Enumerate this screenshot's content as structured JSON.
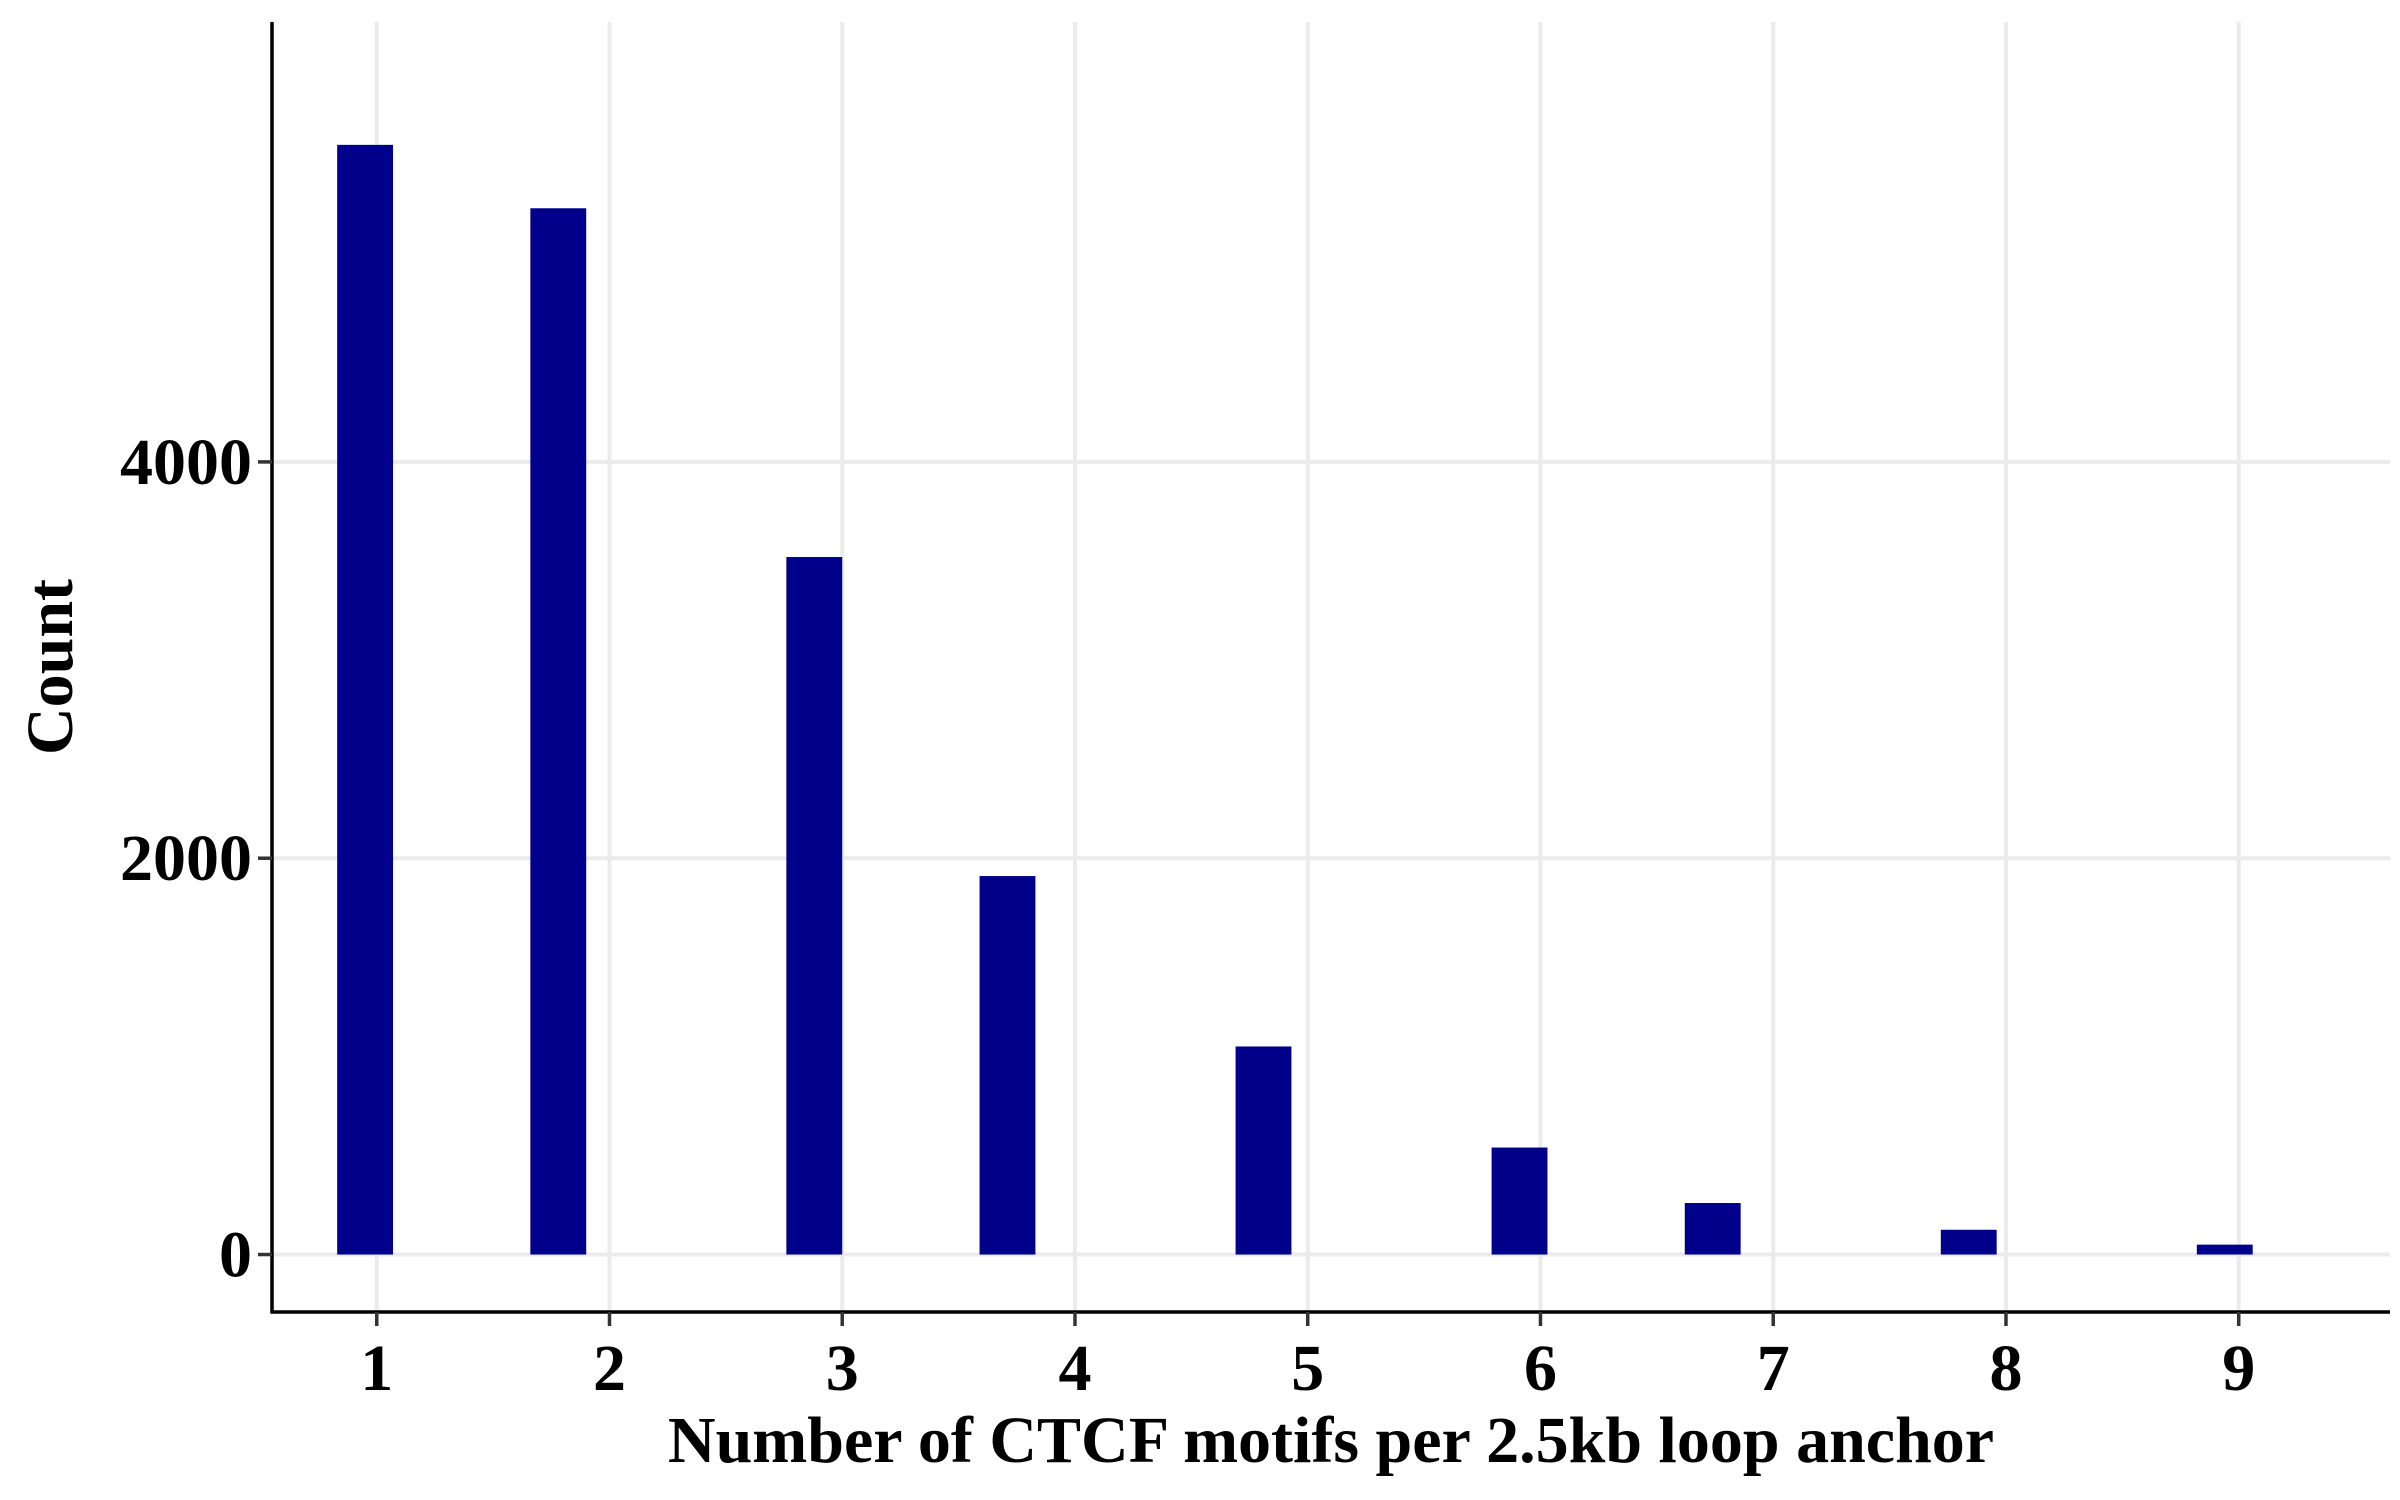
{
  "chart_data": {
    "type": "bar",
    "title": "",
    "xlabel": "Number of CTCF motifs per 2.5kb loop anchor",
    "ylabel": "Count",
    "x_ticks": [
      "1",
      "2",
      "3",
      "4",
      "5",
      "6",
      "7",
      "8",
      "9"
    ],
    "y_ticks": [
      "0",
      "2000",
      "4000"
    ],
    "x": [
      0.95,
      1.78,
      2.88,
      3.71,
      4.81,
      5.91,
      6.74,
      7.84,
      8.94
    ],
    "values": [
      5600,
      5280,
      3520,
      1910,
      1050,
      540,
      260,
      125,
      50
    ],
    "xlim": [
      0.55,
      9.65
    ],
    "ylim": [
      -290,
      6220
    ],
    "bar_color": "#00008b",
    "grid": true,
    "legend": "none"
  }
}
